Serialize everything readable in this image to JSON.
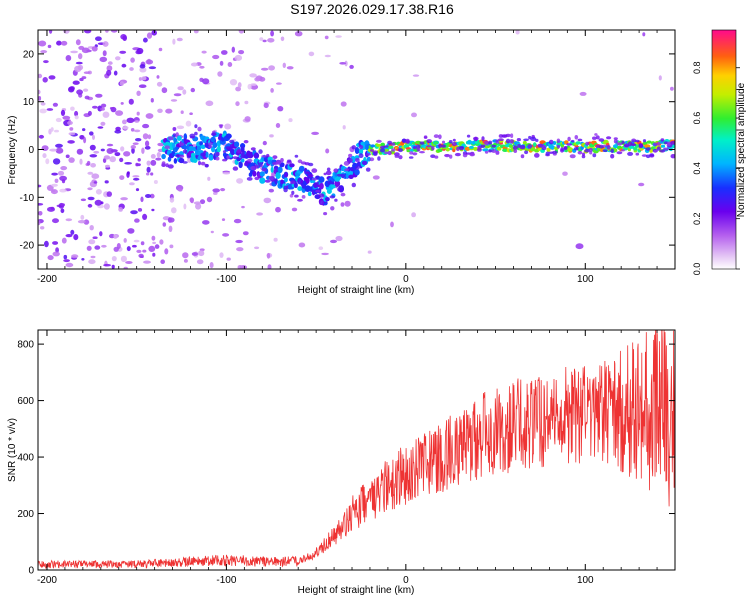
{
  "title": "S197.2026.029.17.38.R16",
  "colorbar_ticks": [
    "0.0",
    "0.2",
    "0.4",
    "0.6",
    "0.8"
  ],
  "chart_data": [
    {
      "type": "heatmap",
      "xlabel": "Height of straight line (km)",
      "ylabel": "Frequency (Hz)",
      "xlim": [
        -205,
        150
      ],
      "ylim": [
        -25,
        25
      ],
      "xticks": [
        -200,
        -100,
        0,
        100
      ],
      "yticks": [
        -20,
        -10,
        0,
        10,
        20
      ],
      "colorbar": {
        "label": "Normalized spectral amplitude",
        "range": [
          0,
          0.95
        ],
        "ticks": [
          0,
          0.2,
          0.4,
          0.6,
          0.8
        ]
      },
      "ridge": [
        {
          "x": -130,
          "y": 0
        },
        {
          "x": -115,
          "y": 0.5
        },
        {
          "x": -100,
          "y": 1
        },
        {
          "x": -90,
          "y": -2
        },
        {
          "x": -80,
          "y": -4
        },
        {
          "x": -70,
          "y": -5
        },
        {
          "x": -60,
          "y": -6
        },
        {
          "x": -50,
          "y": -8
        },
        {
          "x": -45,
          "y": -9
        },
        {
          "x": -38,
          "y": -7
        },
        {
          "x": -30,
          "y": -4
        },
        {
          "x": -25,
          "y": -1
        },
        {
          "x": -20,
          "y": 0
        },
        {
          "x": 0,
          "y": 0.5
        },
        {
          "x": 50,
          "y": 0.8
        },
        {
          "x": 100,
          "y": 0.5
        },
        {
          "x": 150,
          "y": 0.8
        }
      ]
    },
    {
      "type": "line",
      "xlabel": "Height of straight line (km)",
      "ylabel": "SNR (10 * v/v)",
      "xlim": [
        -205,
        150
      ],
      "ylim": [
        0,
        850
      ],
      "xticks": [
        -200,
        -100,
        0,
        100
      ],
      "yticks": [
        0,
        200,
        400,
        600,
        800
      ],
      "series": [
        {
          "name": "SNR",
          "color": "#ee3333",
          "x": [
            -205,
            -150,
            -100,
            -80,
            -60,
            -50,
            -40,
            -30,
            -20,
            -10,
            0,
            20,
            40,
            60,
            80,
            100,
            120,
            130,
            140,
            150
          ],
          "y": [
            20,
            20,
            35,
            30,
            30,
            60,
            120,
            200,
            250,
            300,
            340,
            400,
            470,
            510,
            540,
            555,
            560,
            560,
            560,
            560
          ]
        }
      ]
    }
  ]
}
